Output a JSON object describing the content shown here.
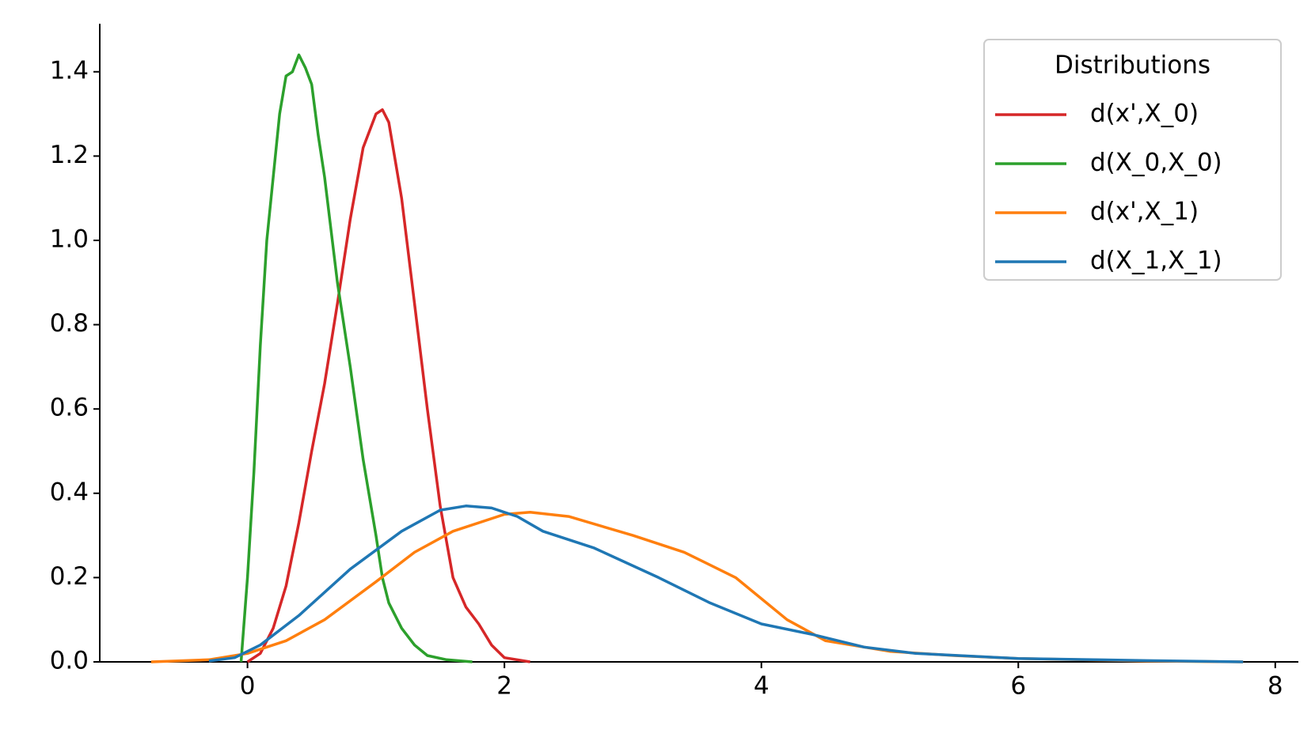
{
  "chart_data": {
    "type": "line",
    "legend_title": "Distributions",
    "legend": "upper right",
    "xlim": [
      -1.15,
      8.18
    ],
    "ylim": [
      0,
      1.514
    ],
    "xticks": [
      0,
      2,
      4,
      6,
      8
    ],
    "yticks": [
      {
        "value": 0,
        "label": "0.0"
      },
      {
        "value": 0.2,
        "label": "0.2"
      },
      {
        "value": 0.4,
        "label": "0.4"
      },
      {
        "value": 0.6,
        "label": "0.6"
      },
      {
        "value": 0.8,
        "label": "0.8"
      },
      {
        "value": 1.0,
        "label": "1.0"
      },
      {
        "value": 1.2,
        "label": "1.2"
      },
      {
        "value": 1.4,
        "label": "1.4"
      }
    ],
    "series": [
      {
        "name": "d(x',X_0)",
        "color": "#d62728",
        "x": [
          0.0,
          0.1,
          0.2,
          0.3,
          0.4,
          0.5,
          0.6,
          0.7,
          0.8,
          0.9,
          1.0,
          1.05,
          1.1,
          1.2,
          1.3,
          1.4,
          1.5,
          1.6,
          1.7,
          1.8,
          1.9,
          2.0,
          2.2
        ],
        "values": [
          0,
          0.02,
          0.08,
          0.18,
          0.33,
          0.5,
          0.66,
          0.85,
          1.05,
          1.22,
          1.3,
          1.31,
          1.28,
          1.1,
          0.85,
          0.6,
          0.37,
          0.2,
          0.13,
          0.09,
          0.04,
          0.01,
          0
        ]
      },
      {
        "name": "d(X_0,X_0)",
        "color": "#2ca02c",
        "x": [
          -0.05,
          0.0,
          0.05,
          0.1,
          0.15,
          0.2,
          0.25,
          0.3,
          0.35,
          0.4,
          0.45,
          0.5,
          0.55,
          0.6,
          0.7,
          0.8,
          0.9,
          1.0,
          1.05,
          1.1,
          1.2,
          1.3,
          1.4,
          1.55,
          1.75
        ],
        "values": [
          0,
          0.2,
          0.45,
          0.75,
          1.0,
          1.15,
          1.3,
          1.39,
          1.4,
          1.44,
          1.41,
          1.37,
          1.25,
          1.15,
          0.9,
          0.7,
          0.48,
          0.3,
          0.2,
          0.14,
          0.08,
          0.04,
          0.015,
          0.005,
          0
        ]
      },
      {
        "name": "d(x',X_1)",
        "color": "#ff7f0e",
        "x": [
          -0.75,
          -0.3,
          0,
          0.3,
          0.6,
          1.0,
          1.3,
          1.6,
          2.0,
          2.2,
          2.5,
          3.0,
          3.4,
          3.8,
          4.2,
          4.5,
          5.0,
          5.5,
          6.0,
          7.0,
          7.75
        ],
        "values": [
          0,
          0.005,
          0.02,
          0.05,
          0.1,
          0.19,
          0.26,
          0.31,
          0.35,
          0.355,
          0.345,
          0.3,
          0.26,
          0.2,
          0.1,
          0.05,
          0.025,
          0.015,
          0.008,
          0.002,
          0
        ]
      },
      {
        "name": "d(X_1,X_1)",
        "color": "#1f77b4",
        "x": [
          -0.3,
          -0.1,
          0.1,
          0.4,
          0.8,
          1.2,
          1.5,
          1.7,
          1.9,
          2.1,
          2.3,
          2.7,
          3.2,
          3.6,
          4.0,
          4.4,
          4.8,
          5.2,
          6.0,
          7.0,
          7.75
        ],
        "values": [
          0.002,
          0.01,
          0.04,
          0.11,
          0.22,
          0.31,
          0.36,
          0.37,
          0.365,
          0.345,
          0.31,
          0.27,
          0.2,
          0.14,
          0.09,
          0.065,
          0.035,
          0.02,
          0.008,
          0.003,
          0
        ]
      }
    ]
  }
}
